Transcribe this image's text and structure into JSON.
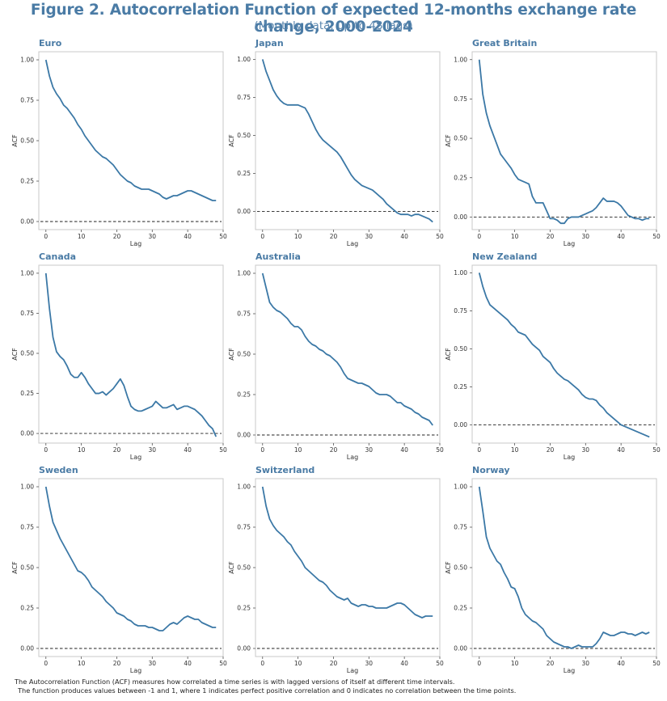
{
  "title": "Figure 2. Autocorrelation Function  of expected 12-months exchange rate change, 2000-2024",
  "subtitle": "(Monthly data, up to 48 lags)",
  "footnote": [
    "The Autocorrelation Function (ACF) measures how correlated a time series is with lagged versions of itself at different time intervals.",
    "The function produces values between -1 and 1, where 1 indicates perfect positive correlation and 0 indicates no correlation between the time points."
  ],
  "colors": {
    "line": "#3b78a6",
    "title": "#4a7ba5",
    "zero_line": "#222222",
    "frame": "#c8c8c8"
  },
  "chart_data": [
    {
      "type": "line",
      "title": "Euro",
      "xlabel": "Lag",
      "ylabel": "ACF",
      "xlim": [
        -2,
        50
      ],
      "ylim": [
        -0.05,
        1.05
      ],
      "xticks": [
        0,
        10,
        20,
        30,
        40,
        50
      ],
      "yticks": [
        0.0,
        0.25,
        0.5,
        0.75,
        1.0
      ],
      "zero_line": "dashed",
      "x": [
        0,
        1,
        2,
        3,
        4,
        5,
        6,
        7,
        8,
        9,
        10,
        11,
        12,
        13,
        14,
        15,
        16,
        17,
        18,
        19,
        20,
        21,
        22,
        23,
        24,
        25,
        26,
        27,
        28,
        29,
        30,
        31,
        32,
        33,
        34,
        35,
        36,
        37,
        38,
        39,
        40,
        41,
        42,
        43,
        44,
        45,
        46,
        47,
        48
      ],
      "values": [
        1.0,
        0.9,
        0.83,
        0.79,
        0.76,
        0.72,
        0.7,
        0.67,
        0.64,
        0.6,
        0.57,
        0.53,
        0.5,
        0.47,
        0.44,
        0.42,
        0.4,
        0.39,
        0.37,
        0.35,
        0.32,
        0.29,
        0.27,
        0.25,
        0.24,
        0.22,
        0.21,
        0.2,
        0.2,
        0.2,
        0.19,
        0.18,
        0.17,
        0.15,
        0.14,
        0.15,
        0.16,
        0.16,
        0.17,
        0.18,
        0.19,
        0.19,
        0.18,
        0.17,
        0.16,
        0.15,
        0.14,
        0.13,
        0.13
      ]
    },
    {
      "type": "line",
      "title": "Japan",
      "xlabel": "Lag",
      "ylabel": "ACF",
      "xlim": [
        -2,
        50
      ],
      "ylim": [
        -0.12,
        1.05
      ],
      "xticks": [
        0,
        10,
        20,
        30,
        40,
        50
      ],
      "yticks": [
        0.0,
        0.25,
        0.5,
        0.75,
        1.0
      ],
      "zero_line": "dashed",
      "x": [
        0,
        1,
        2,
        3,
        4,
        5,
        6,
        7,
        8,
        9,
        10,
        11,
        12,
        13,
        14,
        15,
        16,
        17,
        18,
        19,
        20,
        21,
        22,
        23,
        24,
        25,
        26,
        27,
        28,
        29,
        30,
        31,
        32,
        33,
        34,
        35,
        36,
        37,
        38,
        39,
        40,
        41,
        42,
        43,
        44,
        45,
        46,
        47,
        48
      ],
      "values": [
        1.0,
        0.92,
        0.86,
        0.8,
        0.76,
        0.73,
        0.71,
        0.7,
        0.7,
        0.7,
        0.7,
        0.69,
        0.68,
        0.64,
        0.59,
        0.54,
        0.5,
        0.47,
        0.45,
        0.43,
        0.41,
        0.39,
        0.36,
        0.32,
        0.28,
        0.24,
        0.21,
        0.19,
        0.17,
        0.16,
        0.15,
        0.14,
        0.12,
        0.1,
        0.08,
        0.05,
        0.03,
        0.01,
        -0.01,
        -0.02,
        -0.02,
        -0.02,
        -0.03,
        -0.02,
        -0.02,
        -0.03,
        -0.04,
        -0.05,
        -0.07
      ]
    },
    {
      "type": "line",
      "title": "Great Britain",
      "xlabel": "Lag",
      "ylabel": "ACF",
      "xlim": [
        -2,
        50
      ],
      "ylim": [
        -0.08,
        1.05
      ],
      "xticks": [
        0,
        10,
        20,
        30,
        40,
        50
      ],
      "yticks": [
        0.0,
        0.25,
        0.5,
        0.75,
        1.0
      ],
      "zero_line": "dashed",
      "x": [
        0,
        1,
        2,
        3,
        4,
        5,
        6,
        7,
        8,
        9,
        10,
        11,
        12,
        13,
        14,
        15,
        16,
        17,
        18,
        19,
        20,
        21,
        22,
        23,
        24,
        25,
        26,
        27,
        28,
        29,
        30,
        31,
        32,
        33,
        34,
        35,
        36,
        37,
        38,
        39,
        40,
        41,
        42,
        43,
        44,
        45,
        46,
        47,
        48
      ],
      "values": [
        1.0,
        0.78,
        0.66,
        0.58,
        0.52,
        0.46,
        0.4,
        0.37,
        0.34,
        0.31,
        0.27,
        0.24,
        0.23,
        0.22,
        0.21,
        0.13,
        0.09,
        0.09,
        0.09,
        0.04,
        -0.01,
        -0.01,
        -0.02,
        -0.04,
        -0.04,
        -0.01,
        0.0,
        0.0,
        0.0,
        0.01,
        0.02,
        0.03,
        0.04,
        0.06,
        0.09,
        0.12,
        0.1,
        0.1,
        0.1,
        0.09,
        0.07,
        0.04,
        0.01,
        0.0,
        -0.01,
        -0.01,
        -0.02,
        -0.01,
        -0.01
      ]
    },
    {
      "type": "line",
      "title": "Canada",
      "xlabel": "Lag",
      "ylabel": "ACF",
      "xlim": [
        -2,
        50
      ],
      "ylim": [
        -0.06,
        1.05
      ],
      "xticks": [
        0,
        10,
        20,
        30,
        40,
        50
      ],
      "yticks": [
        0.0,
        0.25,
        0.5,
        0.75,
        1.0
      ],
      "zero_line": "dashed",
      "x": [
        0,
        1,
        2,
        3,
        4,
        5,
        6,
        7,
        8,
        9,
        10,
        11,
        12,
        13,
        14,
        15,
        16,
        17,
        18,
        19,
        20,
        21,
        22,
        23,
        24,
        25,
        26,
        27,
        28,
        29,
        30,
        31,
        32,
        33,
        34,
        35,
        36,
        37,
        38,
        39,
        40,
        41,
        42,
        43,
        44,
        45,
        46,
        47,
        48
      ],
      "values": [
        1.0,
        0.78,
        0.6,
        0.51,
        0.48,
        0.46,
        0.42,
        0.37,
        0.35,
        0.35,
        0.38,
        0.35,
        0.31,
        0.28,
        0.25,
        0.25,
        0.26,
        0.24,
        0.26,
        0.28,
        0.31,
        0.34,
        0.3,
        0.23,
        0.17,
        0.15,
        0.14,
        0.14,
        0.15,
        0.16,
        0.17,
        0.2,
        0.18,
        0.16,
        0.16,
        0.17,
        0.18,
        0.15,
        0.16,
        0.17,
        0.17,
        0.16,
        0.15,
        0.13,
        0.11,
        0.08,
        0.05,
        0.03,
        -0.02
      ]
    },
    {
      "type": "line",
      "title": "Australia",
      "xlabel": "Lag",
      "ylabel": "ACF",
      "xlim": [
        -2,
        50
      ],
      "ylim": [
        -0.05,
        1.05
      ],
      "xticks": [
        0,
        10,
        20,
        30,
        40,
        50
      ],
      "yticks": [
        0.0,
        0.25,
        0.5,
        0.75,
        1.0
      ],
      "zero_line": "dashed",
      "x": [
        0,
        1,
        2,
        3,
        4,
        5,
        6,
        7,
        8,
        9,
        10,
        11,
        12,
        13,
        14,
        15,
        16,
        17,
        18,
        19,
        20,
        21,
        22,
        23,
        24,
        25,
        26,
        27,
        28,
        29,
        30,
        31,
        32,
        33,
        34,
        35,
        36,
        37,
        38,
        39,
        40,
        41,
        42,
        43,
        44,
        45,
        46,
        47,
        48
      ],
      "values": [
        1.0,
        0.91,
        0.82,
        0.79,
        0.77,
        0.76,
        0.74,
        0.72,
        0.69,
        0.67,
        0.67,
        0.65,
        0.61,
        0.58,
        0.56,
        0.55,
        0.53,
        0.52,
        0.5,
        0.49,
        0.47,
        0.45,
        0.42,
        0.38,
        0.35,
        0.34,
        0.33,
        0.32,
        0.32,
        0.31,
        0.3,
        0.28,
        0.26,
        0.25,
        0.25,
        0.25,
        0.24,
        0.22,
        0.2,
        0.2,
        0.18,
        0.17,
        0.16,
        0.14,
        0.13,
        0.11,
        0.1,
        0.09,
        0.06
      ]
    },
    {
      "type": "line",
      "title": "New Zealand",
      "xlabel": "Lag",
      "ylabel": "ACF",
      "xlim": [
        -2,
        50
      ],
      "ylim": [
        -0.12,
        1.05
      ],
      "xticks": [
        0,
        10,
        20,
        30,
        40,
        50
      ],
      "yticks": [
        0.0,
        0.25,
        0.5,
        0.75,
        1.0
      ],
      "zero_line": "dashed",
      "x": [
        0,
        1,
        2,
        3,
        4,
        5,
        6,
        7,
        8,
        9,
        10,
        11,
        12,
        13,
        14,
        15,
        16,
        17,
        18,
        19,
        20,
        21,
        22,
        23,
        24,
        25,
        26,
        27,
        28,
        29,
        30,
        31,
        32,
        33,
        34,
        35,
        36,
        37,
        38,
        39,
        40,
        41,
        42,
        43,
        44,
        45,
        46,
        47,
        48
      ],
      "values": [
        1.0,
        0.91,
        0.84,
        0.79,
        0.77,
        0.75,
        0.73,
        0.71,
        0.69,
        0.66,
        0.64,
        0.61,
        0.6,
        0.59,
        0.56,
        0.53,
        0.51,
        0.49,
        0.45,
        0.43,
        0.41,
        0.37,
        0.34,
        0.32,
        0.3,
        0.29,
        0.27,
        0.25,
        0.23,
        0.2,
        0.18,
        0.17,
        0.17,
        0.16,
        0.13,
        0.11,
        0.08,
        0.06,
        0.04,
        0.02,
        0.0,
        -0.01,
        -0.02,
        -0.03,
        -0.04,
        -0.05,
        -0.06,
        -0.07,
        -0.08
      ]
    },
    {
      "type": "line",
      "title": "Sweden",
      "xlabel": "Lag",
      "ylabel": "ACF",
      "xlim": [
        -2,
        50
      ],
      "ylim": [
        -0.05,
        1.05
      ],
      "xticks": [
        0,
        10,
        20,
        30,
        40,
        50
      ],
      "yticks": [
        0.0,
        0.25,
        0.5,
        0.75,
        1.0
      ],
      "zero_line": "dashed",
      "x": [
        0,
        1,
        2,
        3,
        4,
        5,
        6,
        7,
        8,
        9,
        10,
        11,
        12,
        13,
        14,
        15,
        16,
        17,
        18,
        19,
        20,
        21,
        22,
        23,
        24,
        25,
        26,
        27,
        28,
        29,
        30,
        31,
        32,
        33,
        34,
        35,
        36,
        37,
        38,
        39,
        40,
        41,
        42,
        43,
        44,
        45,
        46,
        47,
        48
      ],
      "values": [
        1.0,
        0.88,
        0.78,
        0.73,
        0.68,
        0.64,
        0.6,
        0.56,
        0.52,
        0.48,
        0.47,
        0.45,
        0.42,
        0.38,
        0.36,
        0.34,
        0.32,
        0.29,
        0.27,
        0.25,
        0.22,
        0.21,
        0.2,
        0.18,
        0.17,
        0.15,
        0.14,
        0.14,
        0.14,
        0.13,
        0.13,
        0.12,
        0.11,
        0.11,
        0.13,
        0.15,
        0.16,
        0.15,
        0.17,
        0.19,
        0.2,
        0.19,
        0.18,
        0.18,
        0.16,
        0.15,
        0.14,
        0.13,
        0.13
      ]
    },
    {
      "type": "line",
      "title": "Switzerland",
      "xlabel": "Lag",
      "ylabel": "ACF",
      "xlim": [
        -2,
        50
      ],
      "ylim": [
        -0.05,
        1.05
      ],
      "xticks": [
        0,
        10,
        20,
        30,
        40,
        50
      ],
      "yticks": [
        0.0,
        0.25,
        0.5,
        0.75,
        1.0
      ],
      "zero_line": "dashed",
      "x": [
        0,
        1,
        2,
        3,
        4,
        5,
        6,
        7,
        8,
        9,
        10,
        11,
        12,
        13,
        14,
        15,
        16,
        17,
        18,
        19,
        20,
        21,
        22,
        23,
        24,
        25,
        26,
        27,
        28,
        29,
        30,
        31,
        32,
        33,
        34,
        35,
        36,
        37,
        38,
        39,
        40,
        41,
        42,
        43,
        44,
        45,
        46,
        47,
        48
      ],
      "values": [
        1.0,
        0.88,
        0.8,
        0.76,
        0.73,
        0.71,
        0.69,
        0.66,
        0.64,
        0.6,
        0.57,
        0.54,
        0.5,
        0.48,
        0.46,
        0.44,
        0.42,
        0.41,
        0.39,
        0.36,
        0.34,
        0.32,
        0.31,
        0.3,
        0.31,
        0.28,
        0.27,
        0.26,
        0.27,
        0.27,
        0.26,
        0.26,
        0.25,
        0.25,
        0.25,
        0.25,
        0.26,
        0.27,
        0.28,
        0.28,
        0.27,
        0.25,
        0.23,
        0.21,
        0.2,
        0.19,
        0.2,
        0.2,
        0.2
      ]
    },
    {
      "type": "line",
      "title": "Norway",
      "xlabel": "Lag",
      "ylabel": "ACF",
      "xlim": [
        -2,
        50
      ],
      "ylim": [
        -0.05,
        1.05
      ],
      "xticks": [
        0,
        10,
        20,
        30,
        40,
        50
      ],
      "yticks": [
        0.0,
        0.25,
        0.5,
        0.75,
        1.0
      ],
      "zero_line": "dashed",
      "x": [
        0,
        1,
        2,
        3,
        4,
        5,
        6,
        7,
        8,
        9,
        10,
        11,
        12,
        13,
        14,
        15,
        16,
        17,
        18,
        19,
        20,
        21,
        22,
        23,
        24,
        25,
        26,
        27,
        28,
        29,
        30,
        31,
        32,
        33,
        34,
        35,
        36,
        37,
        38,
        39,
        40,
        41,
        42,
        43,
        44,
        45,
        46,
        47,
        48
      ],
      "values": [
        1.0,
        0.85,
        0.69,
        0.62,
        0.58,
        0.54,
        0.52,
        0.47,
        0.43,
        0.38,
        0.37,
        0.32,
        0.25,
        0.21,
        0.19,
        0.17,
        0.16,
        0.14,
        0.12,
        0.08,
        0.06,
        0.04,
        0.03,
        0.02,
        0.01,
        0.01,
        0.0,
        0.01,
        0.02,
        0.01,
        0.01,
        0.01,
        0.01,
        0.03,
        0.06,
        0.1,
        0.09,
        0.08,
        0.08,
        0.09,
        0.1,
        0.1,
        0.09,
        0.09,
        0.08,
        0.09,
        0.1,
        0.09,
        0.1
      ]
    }
  ]
}
